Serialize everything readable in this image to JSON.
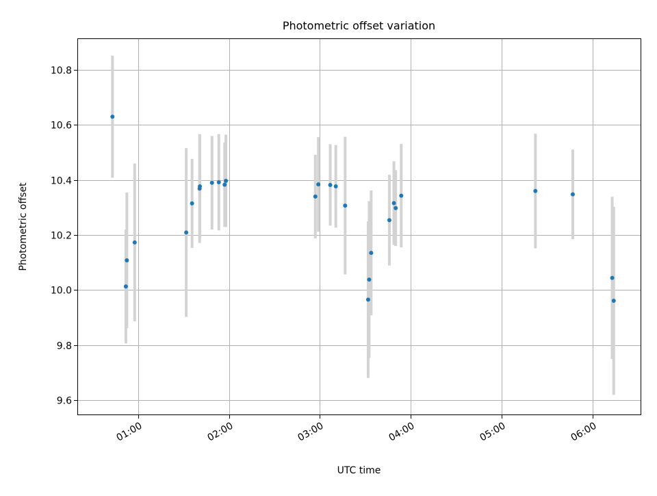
{
  "chart_data": {
    "type": "scatter",
    "title": "Photometric offset variation",
    "xlabel": "UTC time",
    "ylabel": "Photometric offset",
    "x_axis": "time",
    "xlim": [
      "00:20",
      "06:32"
    ],
    "ylim": [
      9.545,
      10.915
    ],
    "grid": true,
    "x_ticks": [
      {
        "value": "01:00",
        "label": "01:00"
      },
      {
        "value": "02:00",
        "label": "02:00"
      },
      {
        "value": "03:00",
        "label": "03:00"
      },
      {
        "value": "04:00",
        "label": "04:00"
      },
      {
        "value": "05:00",
        "label": "05:00"
      },
      {
        "value": "06:00",
        "label": "06:00"
      }
    ],
    "y_ticks": [
      9.6,
      9.8,
      10.0,
      10.2,
      10.4,
      10.6,
      10.8
    ],
    "point_color": "#1f77b4",
    "errorbar_color": "#d3d3d3",
    "points": [
      {
        "time": "00:43:10",
        "y": 10.63,
        "err": 0.222
      },
      {
        "time": "00:52:00",
        "y": 10.013,
        "err": 0.207
      },
      {
        "time": "00:52:40",
        "y": 10.108,
        "err": 0.247
      },
      {
        "time": "00:57:50",
        "y": 10.173,
        "err": 0.287
      },
      {
        "time": "01:31:50",
        "y": 10.209,
        "err": 0.307
      },
      {
        "time": "01:35:40",
        "y": 10.315,
        "err": 0.162
      },
      {
        "time": "01:40:40",
        "y": 10.369,
        "err": 0.198
      },
      {
        "time": "01:40:50",
        "y": 10.377,
        "err": 0.187
      },
      {
        "time": "01:48:50",
        "y": 10.39,
        "err": 0.17
      },
      {
        "time": "01:53:20",
        "y": 10.392,
        "err": 0.175
      },
      {
        "time": "01:57:10",
        "y": 10.383,
        "err": 0.153
      },
      {
        "time": "01:58:00",
        "y": 10.397,
        "err": 0.168
      },
      {
        "time": "02:57:00",
        "y": 10.34,
        "err": 0.152
      },
      {
        "time": "02:59:00",
        "y": 10.384,
        "err": 0.172
      },
      {
        "time": "03:06:50",
        "y": 10.382,
        "err": 0.148
      },
      {
        "time": "03:10:30",
        "y": 10.377,
        "err": 0.15
      },
      {
        "time": "03:16:40",
        "y": 10.307,
        "err": 0.25
      },
      {
        "time": "03:31:50",
        "y": 9.965,
        "err": 0.285
      },
      {
        "time": "03:32:30",
        "y": 10.038,
        "err": 0.285
      },
      {
        "time": "03:33:50",
        "y": 10.135,
        "err": 0.227
      },
      {
        "time": "03:45:50",
        "y": 10.254,
        "err": 0.165
      },
      {
        "time": "03:48:50",
        "y": 10.316,
        "err": 0.152
      },
      {
        "time": "03:50:00",
        "y": 10.298,
        "err": 0.138
      },
      {
        "time": "03:53:40",
        "y": 10.343,
        "err": 0.188
      },
      {
        "time": "05:22:10",
        "y": 10.36,
        "err": 0.208
      },
      {
        "time": "05:46:50",
        "y": 10.348,
        "err": 0.163
      },
      {
        "time": "06:12:50",
        "y": 10.044,
        "err": 0.295
      },
      {
        "time": "06:13:50",
        "y": 9.961,
        "err": 0.342
      }
    ]
  }
}
